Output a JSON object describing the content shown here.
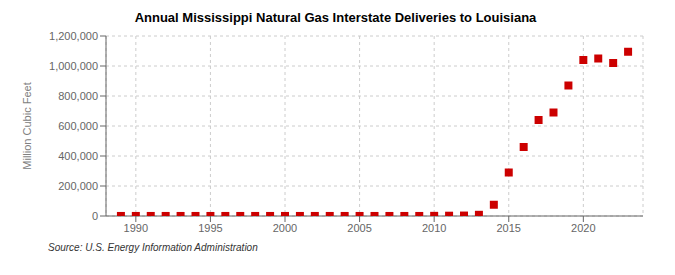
{
  "chart_data": {
    "type": "scatter",
    "title": "Annual Mississippi Natural Gas Interstate Deliveries to Louisiana",
    "ylabel": "Million Cubic Feet",
    "source": "Source: U.S. Energy Information Administration",
    "x": [
      1989,
      1990,
      1991,
      1992,
      1993,
      1994,
      1995,
      1996,
      1997,
      1998,
      1999,
      2000,
      2001,
      2002,
      2003,
      2004,
      2005,
      2006,
      2007,
      2008,
      2009,
      2010,
      2011,
      2012,
      2013,
      2014,
      2015,
      2016,
      2017,
      2018,
      2019,
      2020,
      2021,
      2022,
      2023
    ],
    "values": [
      300,
      300,
      300,
      300,
      300,
      300,
      300,
      300,
      300,
      300,
      300,
      300,
      300,
      300,
      300,
      300,
      300,
      300,
      300,
      300,
      300,
      1000,
      2000,
      3000,
      8000,
      75000,
      290000,
      460000,
      640000,
      690000,
      870000,
      1040000,
      1050000,
      1020000,
      1095000
    ],
    "color": "#cc0000",
    "marker": "square",
    "xlim": [
      1988,
      2024
    ],
    "xticks": [
      1990,
      1995,
      2000,
      2005,
      2010,
      2015,
      2020
    ],
    "ylim": [
      0,
      1200000
    ],
    "yticks": [
      0,
      {
        "value": 200000,
        "label": "200,000"
      },
      {
        "value": 400000,
        "label": "400,000"
      },
      {
        "value": 600000,
        "label": "600,000"
      },
      {
        "value": 800000,
        "label": "800,000"
      },
      {
        "value": 1000000,
        "label": "1,000,000"
      },
      {
        "value": 1200000,
        "label": "1,200,000"
      }
    ],
    "grid": true
  }
}
